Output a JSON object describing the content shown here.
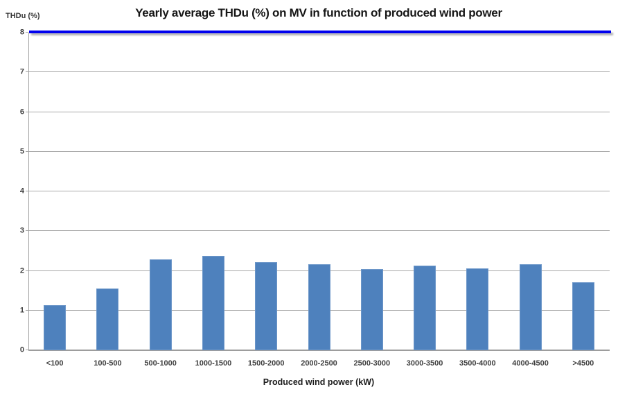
{
  "chart_data": {
    "type": "bar",
    "title": "Yearly average THDu (%) on MV in function of produced wind power",
    "ylabel": "THDu (%)",
    "xlabel": "Produced wind power (kW)",
    "categories": [
      "<100",
      "100-500",
      "500-1000",
      "1000-1500",
      "1500-2000",
      "2000-2500",
      "2500-3000",
      "3000-3500",
      "3500-4000",
      "4000-4500",
      ">4500"
    ],
    "values": [
      1.13,
      1.55,
      2.28,
      2.38,
      2.21,
      2.16,
      2.04,
      2.14,
      2.07,
      2.17,
      1.72
    ],
    "ylim": [
      0,
      8
    ],
    "ytick_step": 1,
    "grid": true,
    "legend": "none",
    "limit_line": {
      "value": 8,
      "color": "#0000ee"
    },
    "bar_color": "#4e81bd",
    "gridline_color": "#a8a8a8"
  }
}
